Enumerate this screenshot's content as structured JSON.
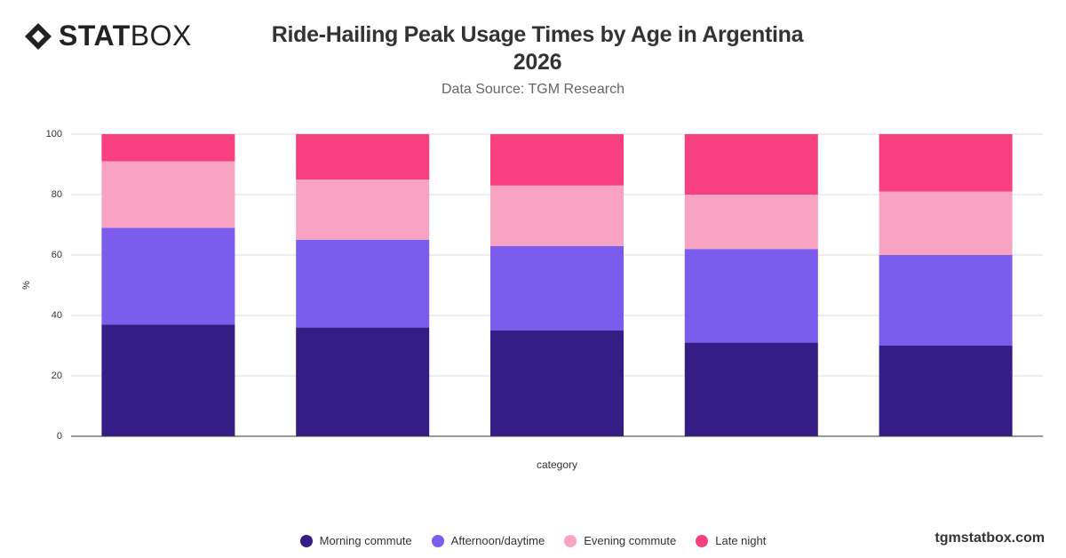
{
  "brand": {
    "bold": "STAT",
    "light": "BOX"
  },
  "footer": "tgmstatbox.com",
  "chart_data": {
    "type": "stacked_bar",
    "title": "Ride-Hailing Peak Usage Times by Age in Argentina 2026",
    "subtitle": "Data Source: TGM Research",
    "x_label": "category",
    "y_label": "%",
    "categories": [
      null,
      null,
      null,
      null,
      null
    ],
    "series": [
      {
        "name": "Morning commute",
        "color": "#361c85",
        "values": [
          37,
          36,
          35,
          31,
          30
        ]
      },
      {
        "name": "Afternoon/daytime",
        "color": "#7b5cec",
        "values": [
          32,
          29,
          28,
          31,
          30
        ]
      },
      {
        "name": "Evening commute",
        "color": "#f9a3c2",
        "values": [
          22,
          20,
          20,
          18,
          21
        ]
      },
      {
        "name": "Late night",
        "color": "#f83f7f",
        "values": [
          9,
          15,
          17,
          20,
          19
        ]
      }
    ],
    "ylim": [
      0,
      100
    ],
    "yticks": [
      0,
      20,
      40,
      60,
      80,
      100
    ],
    "grid": true
  }
}
